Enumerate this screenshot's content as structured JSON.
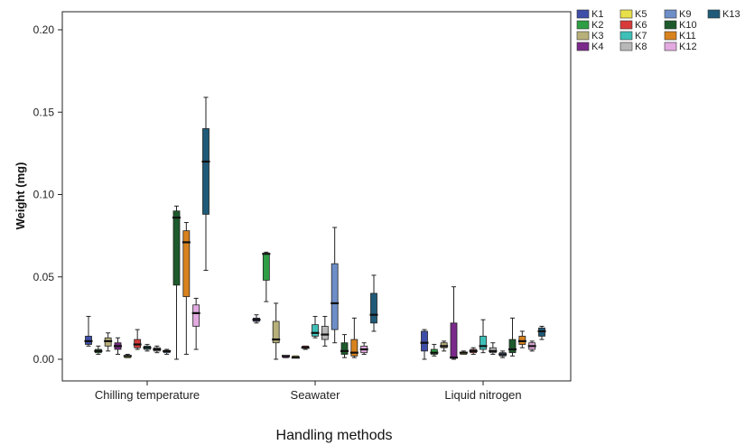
{
  "chart_data": {
    "type": "boxplot",
    "xlabel": "Handling methods",
    "ylabel": "Weight (mg)",
    "ylim": [
      -0.012,
      0.212
    ],
    "yticks": [
      "0.00",
      "0.05",
      "0.10",
      "0.15",
      "0.20"
    ],
    "ytick_values": [
      0,
      0.05,
      0.1,
      0.15,
      0.2
    ],
    "categories": [
      "Chilling temperature",
      "Seawater",
      "Liquid nitrogen"
    ],
    "legend_position": "top-right",
    "grid": false,
    "series": [
      {
        "name": "K1",
        "color": "#3f4ea8",
        "boxes": [
          {
            "min": 0.008,
            "q1": 0.009,
            "median": 0.011,
            "q3": 0.014,
            "max": 0.026
          },
          {
            "min": 0.022,
            "q1": 0.023,
            "median": 0.024,
            "q3": 0.025,
            "max": 0.027
          },
          {
            "min": 0.0,
            "q1": 0.005,
            "median": 0.01,
            "q3": 0.017,
            "max": 0.018
          }
        ]
      },
      {
        "name": "K2",
        "color": "#2e9e44",
        "boxes": [
          {
            "min": 0.003,
            "q1": 0.004,
            "median": 0.005,
            "q3": 0.006,
            "max": 0.008
          },
          {
            "min": 0.035,
            "q1": 0.048,
            "median": 0.064,
            "q3": 0.064,
            "max": 0.065
          },
          {
            "min": 0.002,
            "q1": 0.003,
            "median": 0.004,
            "q3": 0.006,
            "max": 0.009
          }
        ]
      },
      {
        "name": "K3",
        "color": "#b8b07a",
        "boxes": [
          {
            "min": 0.005,
            "q1": 0.008,
            "median": 0.011,
            "q3": 0.013,
            "max": 0.016
          },
          {
            "min": 0.0,
            "q1": 0.01,
            "median": 0.012,
            "q3": 0.023,
            "max": 0.034
          },
          {
            "min": 0.005,
            "q1": 0.007,
            "median": 0.008,
            "q3": 0.01,
            "max": 0.011
          }
        ]
      },
      {
        "name": "K4",
        "color": "#7a2a8a",
        "boxes": [
          {
            "min": 0.003,
            "q1": 0.006,
            "median": 0.008,
            "q3": 0.01,
            "max": 0.013
          },
          {
            "min": 0.001,
            "q1": 0.001,
            "median": 0.002,
            "q3": 0.002,
            "max": 0.002
          },
          {
            "min": 0.0,
            "q1": 0.001,
            "median": 0.001,
            "q3": 0.022,
            "max": 0.044
          }
        ]
      },
      {
        "name": "K5",
        "color": "#e8e04a",
        "boxes": [
          {
            "min": 0.001,
            "q1": 0.001,
            "median": 0.002,
            "q3": 0.002,
            "max": 0.003
          },
          {
            "min": 0.001,
            "q1": 0.001,
            "median": 0.001,
            "q3": 0.002,
            "max": 0.002
          },
          {
            "min": 0.003,
            "q1": 0.003,
            "median": 0.004,
            "q3": 0.004,
            "max": 0.005
          }
        ]
      },
      {
        "name": "K6",
        "color": "#d83a3a",
        "boxes": [
          {
            "min": 0.006,
            "q1": 0.007,
            "median": 0.009,
            "q3": 0.012,
            "max": 0.018
          },
          {
            "min": 0.006,
            "q1": 0.007,
            "median": 0.007,
            "q3": 0.008,
            "max": 0.008
          },
          {
            "min": 0.003,
            "q1": 0.004,
            "median": 0.005,
            "q3": 0.006,
            "max": 0.007
          }
        ]
      },
      {
        "name": "K7",
        "color": "#3ec0b8",
        "boxes": [
          {
            "min": 0.005,
            "q1": 0.006,
            "median": 0.007,
            "q3": 0.008,
            "max": 0.009
          },
          {
            "min": 0.013,
            "q1": 0.014,
            "median": 0.016,
            "q3": 0.021,
            "max": 0.026
          },
          {
            "min": 0.004,
            "q1": 0.006,
            "median": 0.008,
            "q3": 0.014,
            "max": 0.024
          }
        ]
      },
      {
        "name": "K8",
        "color": "#b8b8b8",
        "boxes": [
          {
            "min": 0.004,
            "q1": 0.005,
            "median": 0.006,
            "q3": 0.007,
            "max": 0.008
          },
          {
            "min": 0.008,
            "q1": 0.012,
            "median": 0.015,
            "q3": 0.02,
            "max": 0.026
          },
          {
            "min": 0.003,
            "q1": 0.004,
            "median": 0.005,
            "q3": 0.007,
            "max": 0.01
          }
        ]
      },
      {
        "name": "K9",
        "color": "#6e8ec8",
        "boxes": [
          {
            "min": 0.003,
            "q1": 0.004,
            "median": 0.005,
            "q3": 0.005,
            "max": 0.006
          },
          {
            "min": 0.01,
            "q1": 0.018,
            "median": 0.034,
            "q3": 0.058,
            "max": 0.08
          },
          {
            "min": 0.001,
            "q1": 0.002,
            "median": 0.003,
            "q3": 0.004,
            "max": 0.005
          }
        ]
      },
      {
        "name": "K10",
        "color": "#1d5a2c",
        "boxes": [
          {
            "min": 0.0,
            "q1": 0.045,
            "median": 0.086,
            "q3": 0.09,
            "max": 0.093
          },
          {
            "min": 0.001,
            "q1": 0.003,
            "median": 0.005,
            "q3": 0.01,
            "max": 0.015
          },
          {
            "min": 0.002,
            "q1": 0.004,
            "median": 0.006,
            "q3": 0.012,
            "max": 0.025
          }
        ]
      },
      {
        "name": "K11",
        "color": "#d8821e",
        "boxes": [
          {
            "min": 0.003,
            "q1": 0.038,
            "median": 0.071,
            "q3": 0.078,
            "max": 0.083
          },
          {
            "min": 0.001,
            "q1": 0.002,
            "median": 0.004,
            "q3": 0.012,
            "max": 0.025
          },
          {
            "min": 0.007,
            "q1": 0.009,
            "median": 0.011,
            "q3": 0.014,
            "max": 0.017
          }
        ]
      },
      {
        "name": "K12",
        "color": "#e2aae0",
        "boxes": [
          {
            "min": 0.006,
            "q1": 0.02,
            "median": 0.028,
            "q3": 0.033,
            "max": 0.037
          },
          {
            "min": 0.003,
            "q1": 0.004,
            "median": 0.006,
            "q3": 0.008,
            "max": 0.01
          },
          {
            "min": 0.005,
            "q1": 0.006,
            "median": 0.008,
            "q3": 0.01,
            "max": 0.011
          }
        ]
      },
      {
        "name": "K13",
        "color": "#1f5a78",
        "boxes": [
          {
            "min": 0.054,
            "q1": 0.088,
            "median": 0.12,
            "q3": 0.14,
            "max": 0.159
          },
          {
            "min": 0.017,
            "q1": 0.022,
            "median": 0.027,
            "q3": 0.04,
            "max": 0.051
          },
          {
            "min": 0.012,
            "q1": 0.014,
            "median": 0.017,
            "q3": 0.019,
            "max": 0.02
          }
        ]
      }
    ]
  }
}
